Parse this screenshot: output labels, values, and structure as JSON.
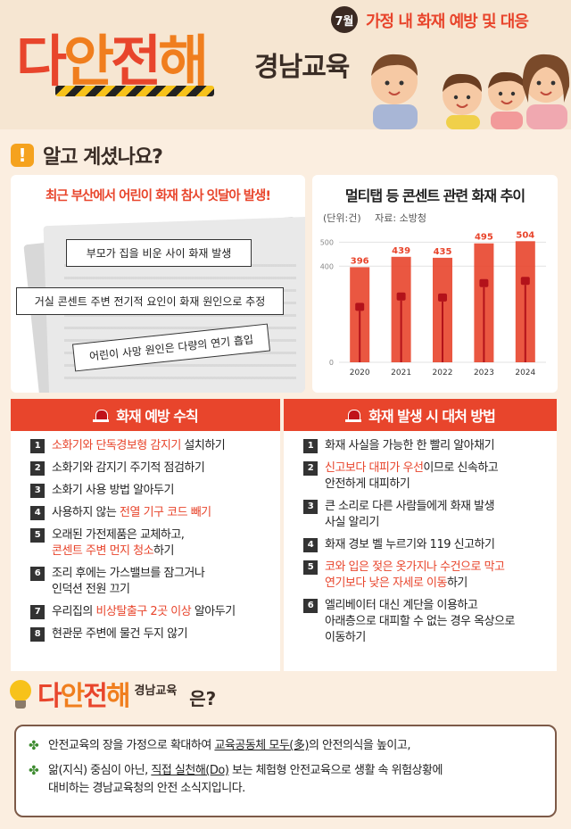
{
  "header": {
    "logo_chars": [
      "다",
      "안",
      "전",
      "해"
    ],
    "logo_sub": "경남교육",
    "month": "7월",
    "topic": "가정 내 화재 예방 및 대응"
  },
  "know": {
    "title": "알고 계셨나요?",
    "news_headline": "최근 부산에서 어린이 화재 참사 잇달아 발생!",
    "clippings": [
      "부모가 집을 비운 사이 화재 발생",
      "거실 콘센트 주변 전기적 요인이 화재 원인으로 추정",
      "어린이 사망 원인은 다량의 연기 흡입"
    ]
  },
  "chart_data": {
    "type": "bar",
    "title": "멀티탭 등 콘센트 관련 화재 추이",
    "unit_label": "(단위:건)",
    "source_label": "자료: 소방청",
    "categories": [
      "2020",
      "2021",
      "2022",
      "2023",
      "2024"
    ],
    "values": [
      396,
      439,
      435,
      495,
      504
    ],
    "y_ticks": [
      0,
      400,
      500
    ],
    "ylim": [
      0,
      520
    ],
    "colors": {
      "bar": "#e8452c",
      "label": "#e8452c"
    }
  },
  "prevention": {
    "title": "화재 예방 수칙",
    "items": [
      {
        "num": "1",
        "parts": [
          {
            "t": "소화기와 단독경보형 감지기",
            "hl": true
          },
          {
            "t": " 설치하기",
            "hl": false
          }
        ]
      },
      {
        "num": "2",
        "parts": [
          {
            "t": "소화기와 감지기 주기적 점검하기",
            "hl": false
          }
        ]
      },
      {
        "num": "3",
        "parts": [
          {
            "t": "소화기 사용 방법 알아두기",
            "hl": false
          }
        ]
      },
      {
        "num": "4",
        "parts": [
          {
            "t": "사용하지 않는 ",
            "hl": false
          },
          {
            "t": "전열 기구 코드 빼기",
            "hl": true
          }
        ]
      },
      {
        "num": "5",
        "parts": [
          {
            "t": "오래된 가전제품은 교체하고,",
            "hl": false
          },
          {
            "t": "\n",
            "hl": false
          },
          {
            "t": "콘센트 주변 먼지 청소",
            "hl": true
          },
          {
            "t": "하기",
            "hl": false
          }
        ]
      },
      {
        "num": "6",
        "parts": [
          {
            "t": "조리 후에는 가스밸브를 잠그거나",
            "hl": false
          },
          {
            "t": "\n",
            "hl": false
          },
          {
            "t": "인덕션 전원 끄기",
            "hl": false
          }
        ]
      },
      {
        "num": "7",
        "parts": [
          {
            "t": "우리집의 ",
            "hl": false
          },
          {
            "t": "비상탈출구 2곳 이상",
            "hl": true
          },
          {
            "t": " 알아두기",
            "hl": false
          }
        ]
      },
      {
        "num": "8",
        "parts": [
          {
            "t": "현관문 주변에 물건 두지 않기",
            "hl": false
          }
        ]
      }
    ]
  },
  "response": {
    "title": "화재 발생 시 대처 방법",
    "items": [
      {
        "num": "1",
        "parts": [
          {
            "t": "화재 사실을 가능한 한 빨리 알아채기",
            "hl": false
          }
        ]
      },
      {
        "num": "2",
        "parts": [
          {
            "t": "신고보다 대피가 우선",
            "hl": true
          },
          {
            "t": "이므로 신속하고",
            "hl": false
          },
          {
            "t": "\n",
            "hl": false
          },
          {
            "t": "안전하게 대피하기",
            "hl": false
          }
        ]
      },
      {
        "num": "3",
        "parts": [
          {
            "t": "큰 소리로 다른 사람들에게 화재 발생",
            "hl": false
          },
          {
            "t": "\n",
            "hl": false
          },
          {
            "t": "사실 알리기",
            "hl": false
          }
        ]
      },
      {
        "num": "4",
        "parts": [
          {
            "t": "화재 경보 벨 누르기와 119 신고하기",
            "hl": false
          }
        ]
      },
      {
        "num": "5",
        "parts": [
          {
            "t": "코와 입은 젖은 옷가지나 수건으로 막고",
            "hl": true
          },
          {
            "t": "\n",
            "hl": false
          },
          {
            "t": "연기보다 낮은 자세로 이동",
            "hl": true
          },
          {
            "t": "하기",
            "hl": false
          }
        ]
      },
      {
        "num": "6",
        "parts": [
          {
            "t": "엘리베이터 대신 계단을 이용하고",
            "hl": false
          },
          {
            "t": "\n",
            "hl": false
          },
          {
            "t": "아래층으로 대피할 수 없는 경우 옥상으로",
            "hl": false
          },
          {
            "t": "\n",
            "hl": false
          },
          {
            "t": "이동하기",
            "hl": false
          }
        ]
      }
    ]
  },
  "about": {
    "logo_chars": [
      "다",
      "안",
      "전",
      "해"
    ],
    "logo_sub": "경남교육",
    "suffix": "은?",
    "line1_a": "안전교육의 장을 가정으로 확대하여 ",
    "line1_u": "교육공동체 모두(多)",
    "line1_b": "의 안전의식을 높이고,",
    "line2_a": "앎(지식) 중심이 아닌, ",
    "line2_u": "직접 실천해(Do)",
    "line2_b": " 보는 체험형 안전교육으로 생활 속 위험상황에",
    "line2_c": "대비하는 경남교육청의 안전 소식지입니다."
  }
}
